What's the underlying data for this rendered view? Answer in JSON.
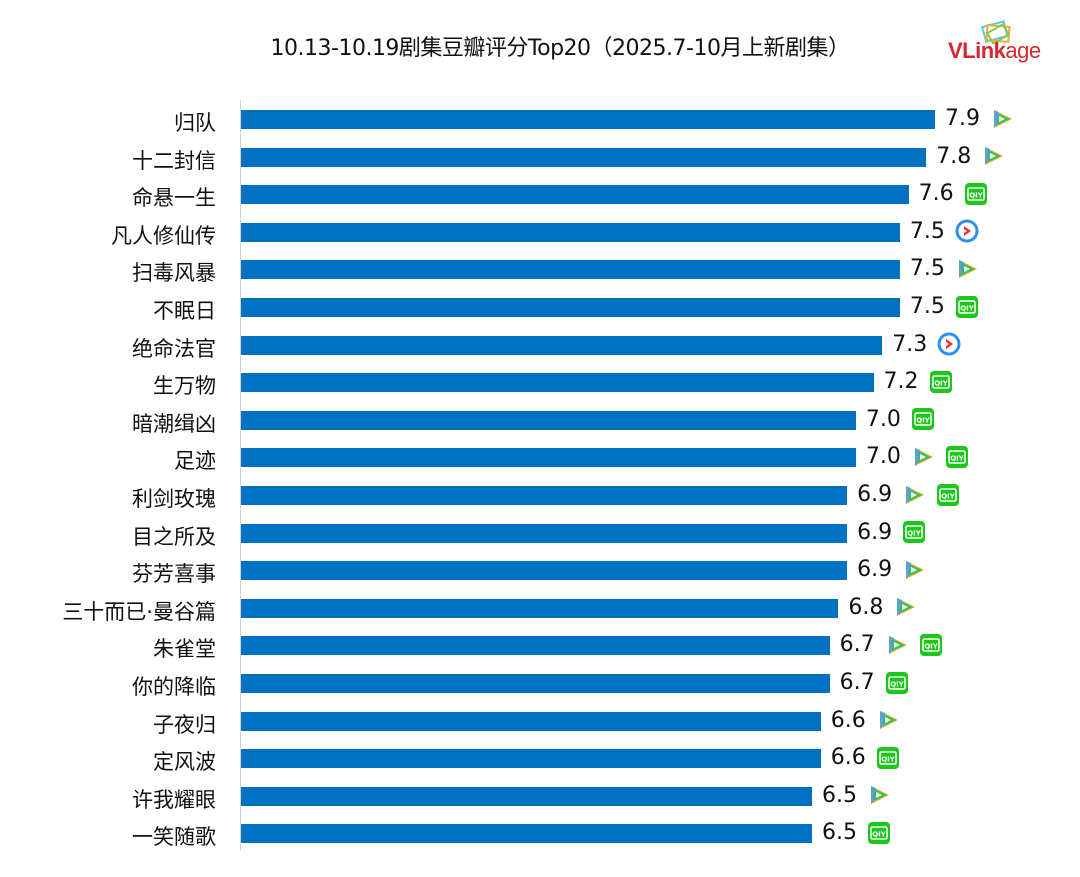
{
  "title": "10.13-10.19剧集豆瓣评分Top20（2025.7-10月上新剧集）",
  "logo": "VLinkage",
  "colors": {
    "bar": "#0070c0",
    "iqiyi": "#1cc71c",
    "youku": "#2f8ff0",
    "tencent": "#2ec35a"
  },
  "chart_data": {
    "type": "bar",
    "orientation": "horizontal",
    "title": "10.13-10.19剧集豆瓣评分Top20（2025.7-10月上新剧集）",
    "xlim": [
      0,
      8
    ],
    "categories": [
      "归队",
      "十二封信",
      "命悬一生",
      "凡人修仙传",
      "扫毒风暴",
      "不眠日",
      "绝命法官",
      "生万物",
      "暗潮缉凶",
      "足迹",
      "利剑玫瑰",
      "目之所及",
      "芬芳喜事",
      "三十而已·曼谷篇",
      "朱雀堂",
      "你的降临",
      "子夜归",
      "定风波",
      "许我耀眼",
      "一笑随歌"
    ],
    "values": [
      7.9,
      7.8,
      7.6,
      7.5,
      7.5,
      7.5,
      7.3,
      7.2,
      7.0,
      7.0,
      6.9,
      6.9,
      6.9,
      6.8,
      6.7,
      6.7,
      6.6,
      6.6,
      6.5,
      6.5
    ],
    "labels": [
      "7.9",
      "7.8",
      "7.6",
      "7.5",
      "7.5",
      "7.5",
      "7.3",
      "7.2",
      "7.0",
      "7.0",
      "6.9",
      "6.9",
      "6.9",
      "6.8",
      "6.7",
      "6.7",
      "6.6",
      "6.6",
      "6.5",
      "6.5"
    ],
    "platforms": [
      [
        "tencent"
      ],
      [
        "tencent"
      ],
      [
        "iqiyi"
      ],
      [
        "youku"
      ],
      [
        "tencent"
      ],
      [
        "iqiyi"
      ],
      [
        "youku"
      ],
      [
        "iqiyi"
      ],
      [
        "iqiyi"
      ],
      [
        "tencent",
        "iqiyi"
      ],
      [
        "tencent",
        "iqiyi"
      ],
      [
        "iqiyi"
      ],
      [
        "tencent"
      ],
      [
        "tencent"
      ],
      [
        "tencent",
        "iqiyi"
      ],
      [
        "iqiyi"
      ],
      [
        "tencent"
      ],
      [
        "iqiyi"
      ],
      [
        "tencent"
      ],
      [
        "iqiyi"
      ]
    ]
  }
}
